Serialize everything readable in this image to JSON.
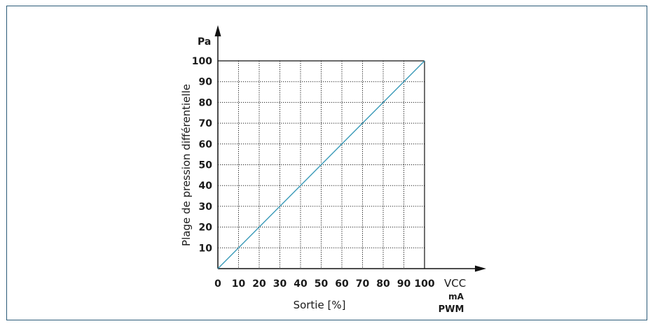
{
  "chart_data": {
    "type": "line",
    "x": [
      0,
      100
    ],
    "series": [
      {
        "values": [
          0,
          100
        ],
        "color": "#3a9ab8"
      }
    ],
    "xlim": [
      0,
      100
    ],
    "ylim": [
      0,
      100
    ],
    "x_ticks": [
      "0",
      "10",
      "20",
      "30",
      "40",
      "50",
      "60",
      "70",
      "80",
      "90",
      "100"
    ],
    "y_ticks": [
      "10",
      "20",
      "30",
      "40",
      "50",
      "60",
      "70",
      "80",
      "90",
      "100"
    ],
    "xlabel": "Sortie [%]",
    "ylabel": "Plage de pression différentielle",
    "y_unit": "Pa",
    "x_units": [
      "VCC",
      "mA",
      "PWM"
    ],
    "grid": true
  }
}
